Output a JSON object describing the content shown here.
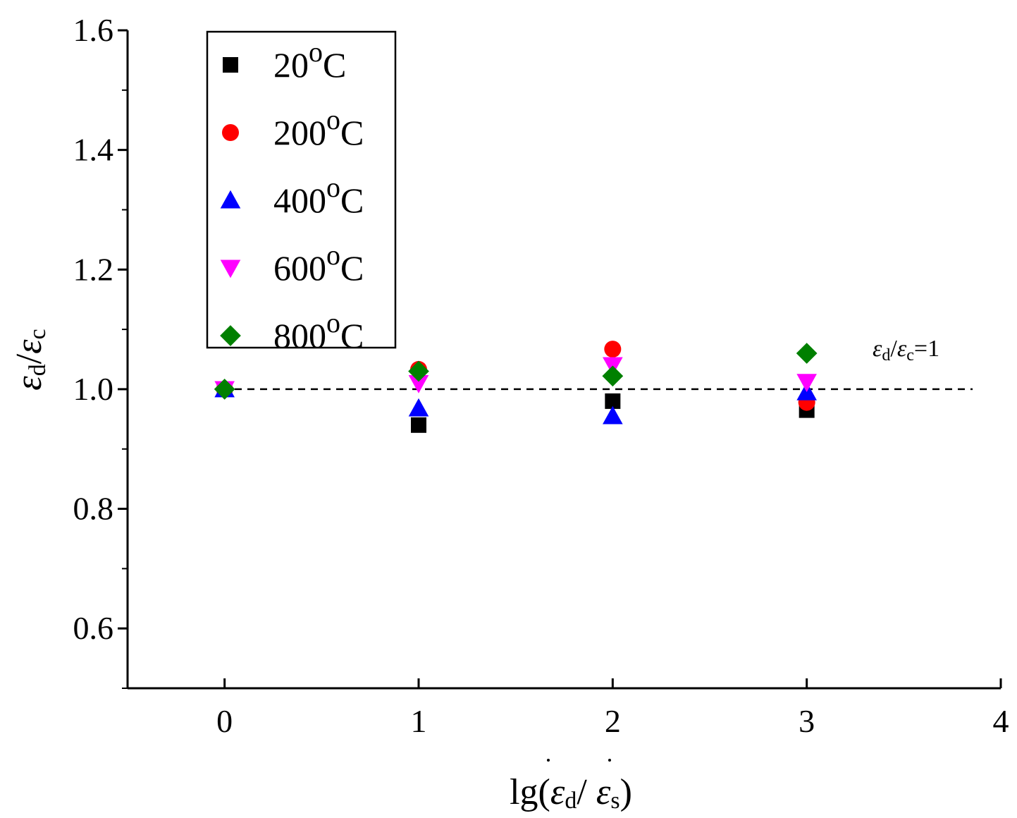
{
  "chart_data": {
    "type": "scatter",
    "title": "",
    "xlabel": "lg(ε̇d/ε̇s)",
    "ylabel": "εd/εc",
    "xlim": [
      -0.5,
      4
    ],
    "ylim": [
      0.5,
      1.6
    ],
    "x_ticks": [
      "0",
      "1",
      "2",
      "3",
      "4"
    ],
    "y_ticks": [
      "0.6",
      "0.8",
      "1.0",
      "1.2",
      "1.4",
      "1.6"
    ],
    "legend_position": "top-left",
    "x_label_parts": {
      "prefix": "lg(",
      "eps1": "ε",
      "sub1": "d",
      "slash": "/ ",
      "eps2": "ε",
      "sub2": "s",
      "suffix": ")"
    },
    "y_label_parts": {
      "eps1": "ε",
      "sub1": "d",
      "slash": "/",
      "eps2": "ε",
      "sub2": "c"
    },
    "reference_line": {
      "y": 1.0,
      "style": "dashed",
      "label_parts": {
        "eps1": "ε",
        "sub1": "d",
        "slash": "/",
        "eps2": "ε",
        "sub2": "c",
        "rest": "=1"
      }
    },
    "series": [
      {
        "name": "20",
        "unit_sup": "o",
        "unit": "C",
        "marker": "square",
        "color": "#000000",
        "x": [
          0,
          1,
          2,
          3
        ],
        "y": [
          1.0,
          0.94,
          0.98,
          0.965
        ]
      },
      {
        "name": "200",
        "unit_sup": "o",
        "unit": "C",
        "marker": "circle",
        "color": "#ff0000",
        "x": [
          0,
          1,
          2,
          3
        ],
        "y": [
          1.0,
          1.033,
          1.067,
          0.978
        ]
      },
      {
        "name": "400",
        "unit_sup": "o",
        "unit": "C",
        "marker": "triangle-up",
        "color": "#0000ff",
        "x": [
          0,
          1,
          2,
          3
        ],
        "y": [
          1.0,
          0.968,
          0.955,
          0.995
        ]
      },
      {
        "name": "600",
        "unit_sup": "o",
        "unit": "C",
        "marker": "triangle-down",
        "color": "#ff00ff",
        "x": [
          0,
          1,
          2,
          3
        ],
        "y": [
          1.0,
          1.01,
          1.04,
          1.012
        ]
      },
      {
        "name": "800",
        "unit_sup": "o",
        "unit": "C",
        "marker": "diamond",
        "color": "#008000",
        "x": [
          0,
          1,
          2,
          3
        ],
        "y": [
          1.0,
          1.03,
          1.022,
          1.06
        ]
      }
    ]
  }
}
